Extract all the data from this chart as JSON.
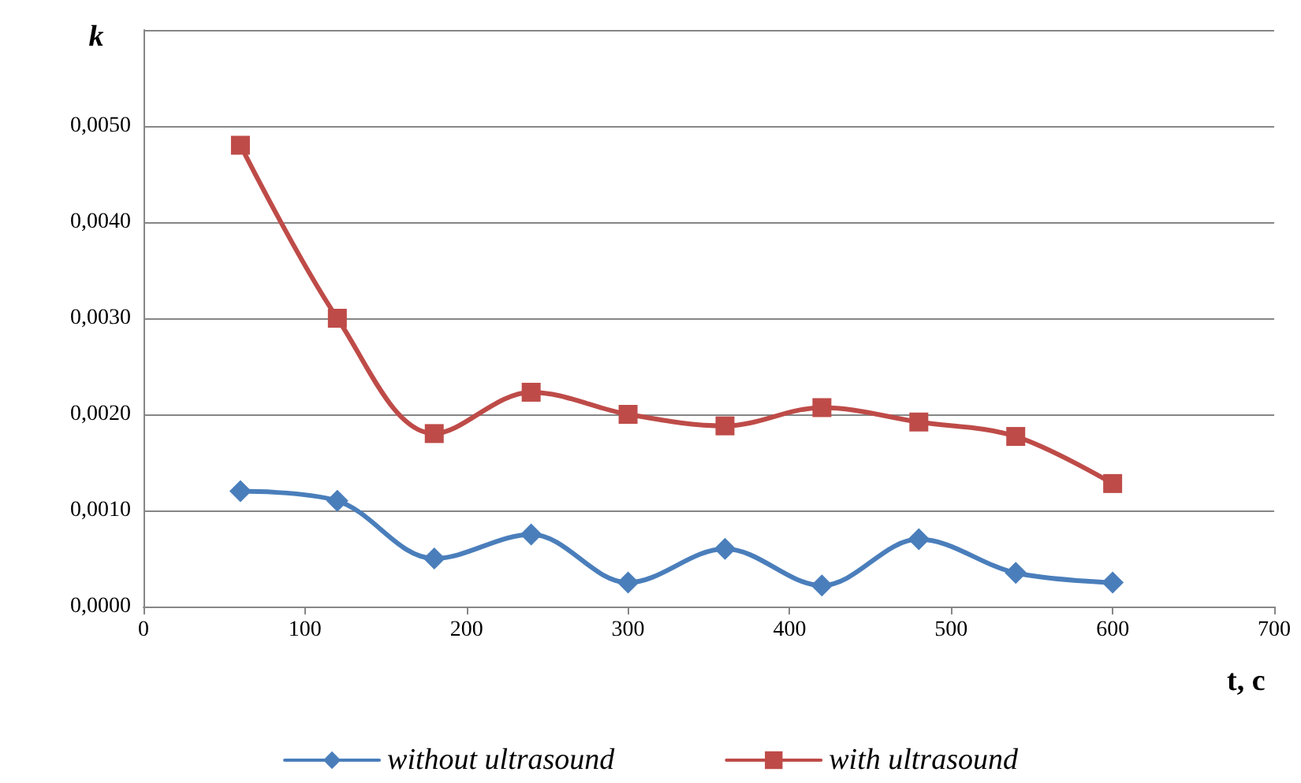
{
  "chart_data": {
    "type": "line",
    "ylabel": "k",
    "xlabel": "t, c",
    "x": [
      60,
      120,
      180,
      240,
      300,
      360,
      420,
      480,
      540,
      600
    ],
    "series": [
      {
        "name": "without ultrasound",
        "color": "#4a7ebb",
        "marker": "diamond",
        "values": [
          0.0012,
          0.0011,
          0.0005,
          0.00075,
          0.00025,
          0.0006,
          0.00022,
          0.0007,
          0.00035,
          0.00025
        ]
      },
      {
        "name": "with ultrasound",
        "color": "#be4b48",
        "marker": "square",
        "values": [
          0.0048,
          0.003,
          0.0018,
          0.00223,
          0.002,
          0.00188,
          0.00207,
          0.00192,
          0.00177,
          0.00128
        ]
      }
    ],
    "xlim": [
      0,
      700
    ],
    "xticks": [
      0,
      100,
      200,
      300,
      400,
      500,
      600,
      700
    ],
    "ylim": [
      0,
      0.006
    ],
    "yticks": [
      {
        "value": 0,
        "label": "0,0000"
      },
      {
        "value": 0.001,
        "label": "0,0010"
      },
      {
        "value": 0.002,
        "label": "0,0020"
      },
      {
        "value": 0.003,
        "label": "0,0030"
      },
      {
        "value": 0.004,
        "label": "0,0040"
      },
      {
        "value": 0.005,
        "label": "0,0050"
      },
      {
        "value": 0.006,
        "label": null
      }
    ],
    "grid": "y",
    "legend": "bottom"
  }
}
